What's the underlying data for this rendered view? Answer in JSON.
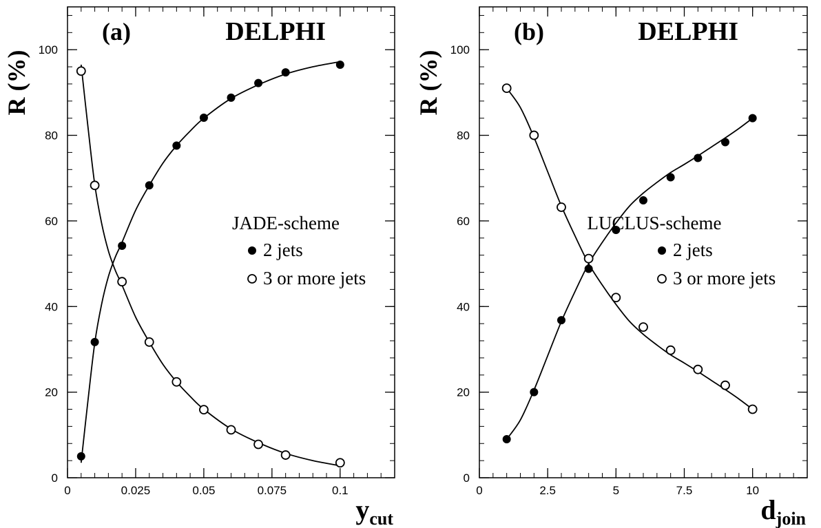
{
  "chart_data": [
    {
      "type": "scatter",
      "panel_label": "(a)",
      "experiment": "DELPHI",
      "legend_title": "JADE-scheme",
      "xlabel": "y",
      "xlabel_sub": "cut",
      "ylabel": "R (%)",
      "xlim": [
        0,
        0.12
      ],
      "ylim": [
        0,
        110
      ],
      "xticks": [
        "0",
        "0.025",
        "0.05",
        "0.075",
        "0.1"
      ],
      "xtick_values": [
        0,
        0.025,
        0.05,
        0.075,
        0.1
      ],
      "yticks": [
        "0",
        "20",
        "40",
        "60",
        "80",
        "100"
      ],
      "ytick_values": [
        0,
        20,
        40,
        60,
        80,
        100
      ],
      "grid": false,
      "legend_position": "right-middle",
      "series": [
        {
          "name": "2 jets",
          "marker": "filled-circle",
          "x": [
            0.005,
            0.01,
            0.02,
            0.03,
            0.04,
            0.05,
            0.06,
            0.07,
            0.08,
            0.1
          ],
          "y": [
            5,
            31.7,
            54.2,
            68.3,
            77.6,
            84.1,
            88.8,
            92.2,
            94.7,
            96.5
          ],
          "fit_x": [
            0.005,
            0.0075,
            0.01,
            0.0125,
            0.015,
            0.0175,
            0.02,
            0.025,
            0.03,
            0.035,
            0.04,
            0.045,
            0.05,
            0.06,
            0.07,
            0.08,
            0.09,
            0.1
          ],
          "fit_y": [
            3.5,
            18,
            31.5,
            40.5,
            47,
            51.5,
            55,
            62.5,
            68.3,
            73.5,
            77.6,
            81,
            84,
            88.6,
            91.8,
            94.3,
            96,
            97.2
          ]
        },
        {
          "name": "3 or more jets",
          "marker": "open-circle",
          "x": [
            0.005,
            0.01,
            0.02,
            0.03,
            0.04,
            0.05,
            0.06,
            0.07,
            0.08,
            0.1
          ],
          "y": [
            95,
            68.3,
            45.8,
            31.7,
            22.4,
            15.9,
            11.2,
            7.8,
            5.3,
            3.5
          ],
          "fit_x": [
            0.005,
            0.0075,
            0.01,
            0.0125,
            0.015,
            0.0175,
            0.02,
            0.025,
            0.03,
            0.035,
            0.04,
            0.045,
            0.05,
            0.06,
            0.07,
            0.08,
            0.09,
            0.1
          ],
          "fit_y": [
            96.5,
            82,
            68.5,
            59.5,
            53,
            48.5,
            45,
            37.5,
            31.7,
            26.5,
            22.4,
            19,
            16,
            11.4,
            8.2,
            5.7,
            4,
            2.8
          ]
        }
      ]
    },
    {
      "type": "scatter",
      "panel_label": "(b)",
      "experiment": "DELPHI",
      "legend_title": "LUCLUS-scheme",
      "xlabel": "d",
      "xlabel_sub": "join",
      "ylabel": "R (%)",
      "xlim": [
        0,
        12
      ],
      "ylim": [
        0,
        110
      ],
      "xticks": [
        "0",
        "2.5",
        "5",
        "7.5",
        "10"
      ],
      "xtick_values": [
        0,
        2.5,
        5,
        7.5,
        10
      ],
      "yticks": [
        "0",
        "20",
        "40",
        "60",
        "80",
        "100"
      ],
      "ytick_values": [
        0,
        20,
        40,
        60,
        80,
        100
      ],
      "grid": false,
      "legend_position": "right-middle",
      "series": [
        {
          "name": "2 jets",
          "marker": "filled-circle",
          "x": [
            1,
            2,
            3,
            4,
            5,
            6,
            7,
            8,
            9,
            10
          ],
          "y": [
            9,
            20,
            36.8,
            48.8,
            57.9,
            64.8,
            70.2,
            74.7,
            78.4,
            84
          ],
          "fit_x": [
            1,
            1.5,
            2,
            2.5,
            3,
            3.5,
            4,
            4.5,
            5,
            5.5,
            6,
            6.5,
            7,
            7.5,
            8,
            8.5,
            9,
            9.5,
            10
          ],
          "fit_y": [
            9,
            13.5,
            20.5,
            28.5,
            36.5,
            43.5,
            50,
            55,
            59.5,
            63.5,
            66.5,
            69,
            71.3,
            73.2,
            75.2,
            77.3,
            79.4,
            81.6,
            84
          ]
        },
        {
          "name": "3 or more jets",
          "marker": "open-circle",
          "x": [
            1,
            2,
            3,
            4,
            5,
            6,
            7,
            8,
            9,
            10
          ],
          "y": [
            91,
            80,
            63.2,
            51.2,
            42.1,
            35.2,
            29.8,
            25.3,
            21.6,
            16
          ],
          "fit_x": [
            1,
            1.5,
            2,
            2.5,
            3,
            3.5,
            4,
            4.5,
            5,
            5.5,
            6,
            6.5,
            7,
            7.5,
            8,
            8.5,
            9,
            9.5,
            10
          ],
          "fit_y": [
            91,
            86.5,
            79.5,
            71.5,
            63.5,
            56.5,
            50,
            45,
            40.5,
            36.5,
            33.5,
            31,
            28.7,
            26.8,
            24.8,
            22.7,
            20.6,
            18.4,
            16
          ]
        }
      ]
    }
  ]
}
